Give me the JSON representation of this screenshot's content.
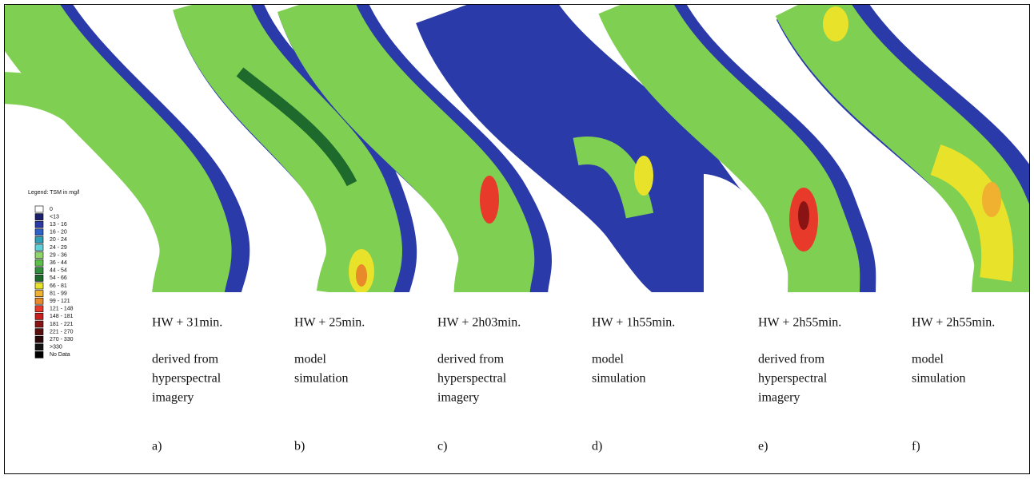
{
  "legend": {
    "title": "Legend: TSM in mg/l",
    "items": [
      {
        "label": "0",
        "color": "#ffffff"
      },
      {
        "label": "<13",
        "color": "#1a1f6e"
      },
      {
        "label": "13 - 16",
        "color": "#2a3aa8"
      },
      {
        "label": "16 - 20",
        "color": "#2f62c8"
      },
      {
        "label": "20 - 24",
        "color": "#2f9fb8"
      },
      {
        "label": "24 - 29",
        "color": "#5fd0d8"
      },
      {
        "label": "29 - 36",
        "color": "#8ed66a"
      },
      {
        "label": "36 - 44",
        "color": "#5cbf4a"
      },
      {
        "label": "44 - 54",
        "color": "#2f8f3a"
      },
      {
        "label": "54 - 66",
        "color": "#1e6a2c"
      },
      {
        "label": "66 - 81",
        "color": "#e8e22a"
      },
      {
        "label": "81 - 99",
        "color": "#f0b030"
      },
      {
        "label": "99 - 121",
        "color": "#e88a2a"
      },
      {
        "label": "121 - 148",
        "color": "#e83a2a"
      },
      {
        "label": "148 - 181",
        "color": "#c81e1e"
      },
      {
        "label": "181 - 221",
        "color": "#8a1414"
      },
      {
        "label": "221 - 270",
        "color": "#5a0e0e"
      },
      {
        "label": "270 - 330",
        "color": "#2a0808"
      },
      {
        "label": ">330",
        "color": "#111111"
      },
      {
        "label": "No Data",
        "color": "#000000"
      }
    ]
  },
  "panels": [
    {
      "caption": "HW + 31min.",
      "description": [
        "derived from",
        "hyperspectral",
        "imagery"
      ],
      "letter": "a)"
    },
    {
      "caption": "HW + 25min.",
      "description": [
        "model",
        "simulation"
      ],
      "letter": "b)"
    },
    {
      "caption": "HW + 2h03min.",
      "description": [
        "derived from",
        "hyperspectral",
        "imagery"
      ],
      "letter": "c)"
    },
    {
      "caption": "HW + 1h55min.",
      "description": [
        "model",
        "simulation"
      ],
      "letter": "d)"
    },
    {
      "caption": "HW + 2h55min.",
      "description": [
        "derived from",
        "hyperspectral",
        "imagery"
      ],
      "letter": "e)"
    },
    {
      "caption": "HW + 2h55min.",
      "description": [
        "model",
        "simulation"
      ],
      "letter": "f)"
    }
  ]
}
